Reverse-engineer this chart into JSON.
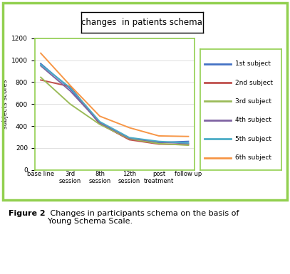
{
  "title": "changes  in patients schema",
  "ylabel": "subjects scores",
  "x_labels": [
    "base line",
    "3rd\nsession",
    "8th\nsession",
    "12th\nsession",
    "post\ntreatment",
    "follow up"
  ],
  "ylim": [
    0,
    1200
  ],
  "yticks": [
    0,
    200,
    400,
    600,
    800,
    1000,
    1200
  ],
  "series": [
    {
      "label": "1st subject",
      "color": "#4472C4",
      "values": [
        970,
        740,
        420,
        280,
        250,
        260
      ]
    },
    {
      "label": "2nd subject",
      "color": "#C0504D",
      "values": [
        820,
        760,
        420,
        275,
        235,
        230
      ]
    },
    {
      "label": "3rd subject",
      "color": "#9BBB59",
      "values": [
        845,
        600,
        415,
        285,
        240,
        225
      ]
    },
    {
      "label": "4th subject",
      "color": "#8064A2",
      "values": [
        950,
        720,
        430,
        290,
        255,
        240
      ]
    },
    {
      "label": "5th subject",
      "color": "#4BACC6",
      "values": [
        960,
        750,
        440,
        295,
        260,
        245
      ]
    },
    {
      "label": "6th subject",
      "color": "#F79646",
      "values": [
        1065,
        770,
        490,
        385,
        310,
        305
      ]
    }
  ],
  "outer_border_color": "#92D050",
  "plot_border_color": "#92D050",
  "title_box_color": "#000000",
  "background_color": "#FFFFFF",
  "legend_border_color": "#92D050",
  "caption_bold": "Figure 2",
  "caption_normal": " Changes in participants schema on the basis of\nYoung Schema Scale."
}
